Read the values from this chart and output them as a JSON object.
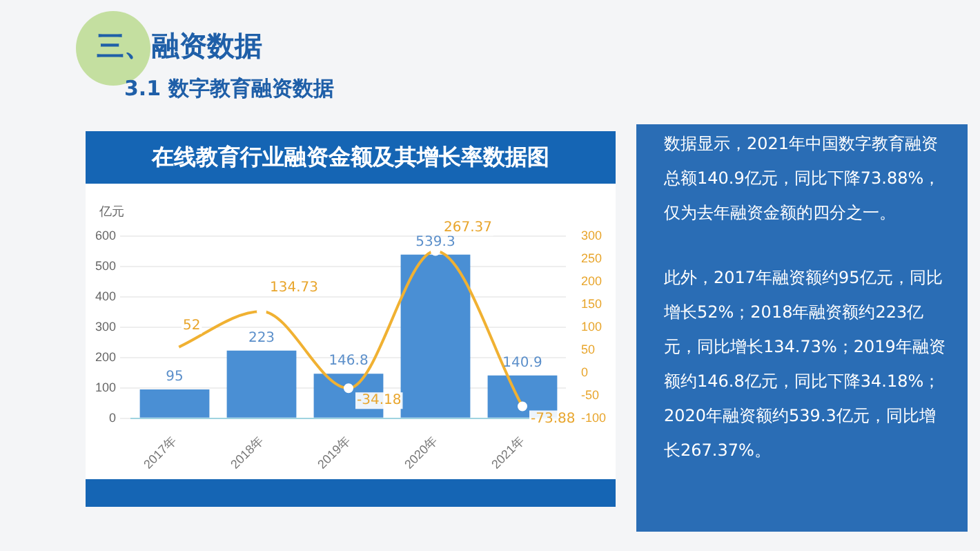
{
  "chart_data": {
    "type": "bar",
    "title": "在线教育行业融资金额及其增长率数据图",
    "ylabel": "亿元",
    "annotations": [
      "三、融资数据",
      "3.1 数字教育融资数据",
      "数据显示，2021年中国数字教育融资总额140.9亿元，同比下降73.88%，仅为去年融资金额的四分之一。",
      "此外，2017年融资额约95亿元，同比增长52%；2018年融资额约223亿元，同比增长134.73%；2019年融资额约146.8亿元，同比下降34.18%；2020年融资额约539.3亿元，同比增长267.37%。"
    ],
    "categories": [
      "2017年",
      "2018年",
      "2019年",
      "2020年",
      "2021年"
    ],
    "series": [
      {
        "color": "#4a8fd4",
        "values": [
          95,
          223,
          146.8,
          539.3,
          140.9
        ]
      },
      {
        "type": "line",
        "axis": "y2",
        "color": "#f0b132",
        "values": [
          52,
          134.73,
          -34.18,
          267.37,
          -73.88
        ]
      }
    ],
    "ylim": [
      0,
      600
    ],
    "yticks": [
      0,
      100,
      200,
      300,
      400,
      500,
      600
    ],
    "y2lim": [
      -100,
      300
    ],
    "y2ticks": [
      -100,
      -50,
      0,
      50,
      100,
      150,
      200,
      250,
      300
    ],
    "grid": "y",
    "legend": false,
    "data_labels": true,
    "marker": "circle",
    "line_style": "solid"
  }
}
